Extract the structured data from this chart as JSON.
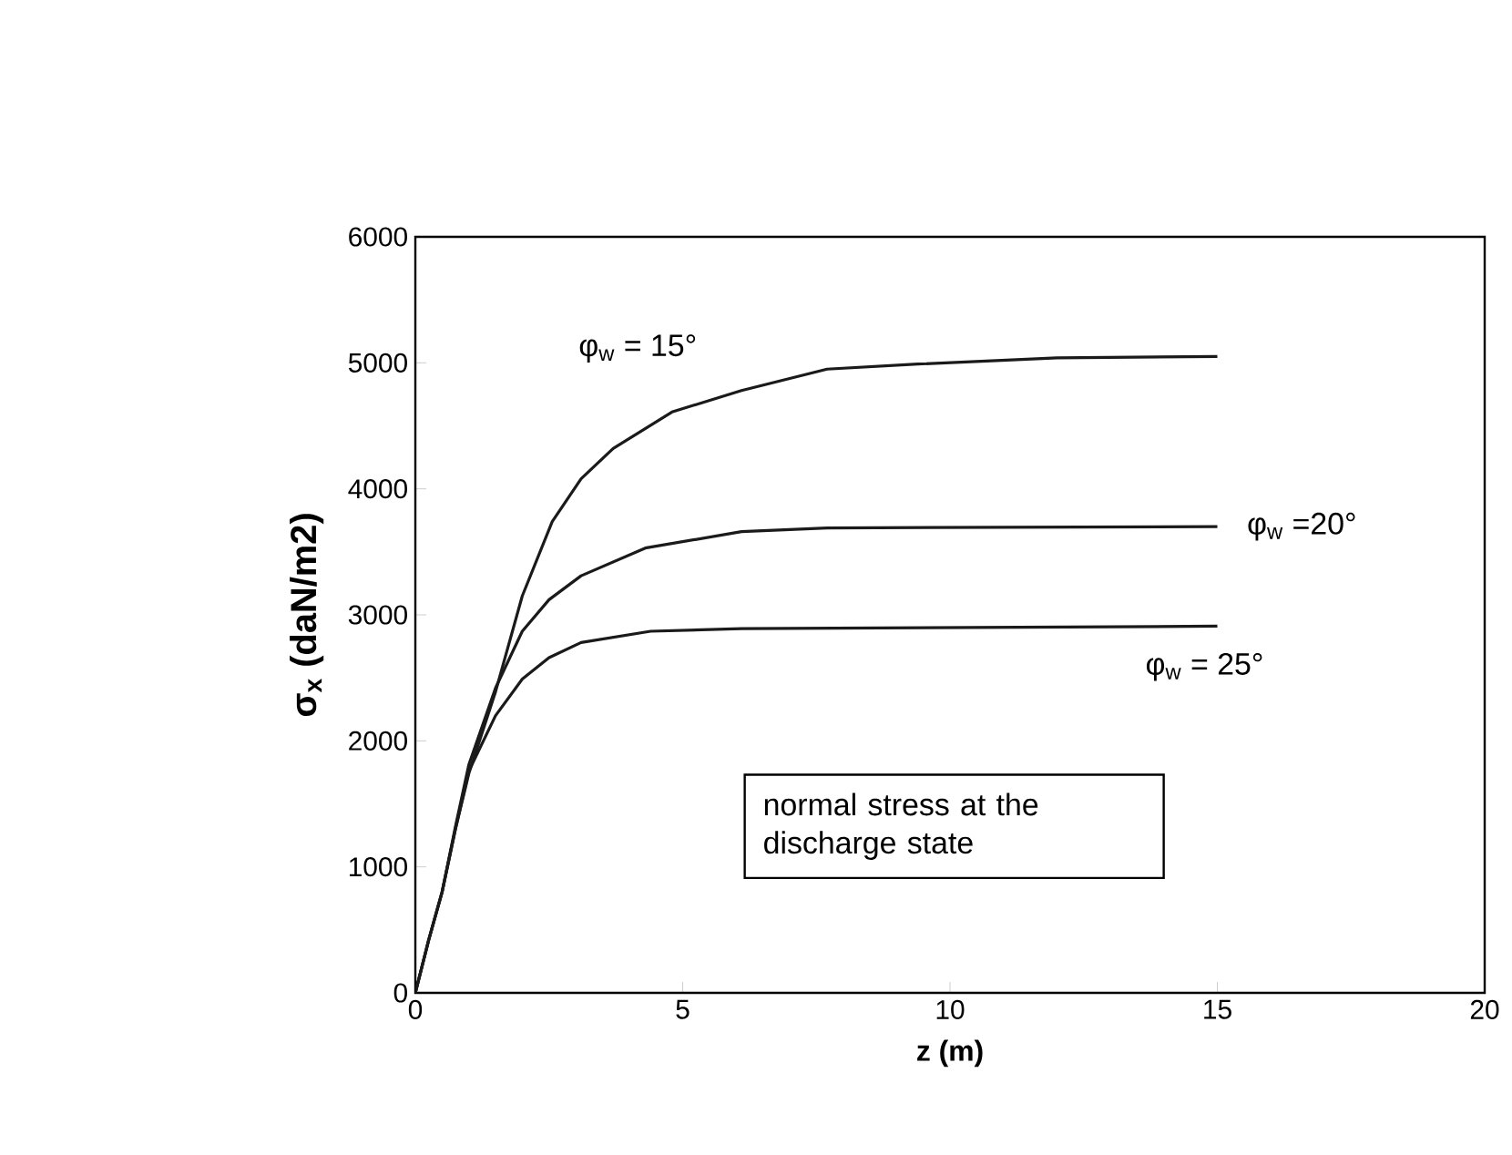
{
  "chart_data": {
    "type": "line",
    "xlabel": "z (m)",
    "ylabel": "σ$_{x}$ (daN/m2)",
    "xlim": [
      0,
      20
    ],
    "ylim": [
      0,
      6000
    ],
    "xticks": [
      0,
      5,
      10,
      15,
      20
    ],
    "yticks": [
      0,
      1000,
      2000,
      3000,
      4000,
      5000,
      6000
    ],
    "grid": false,
    "marker": "none",
    "line_style": "solid",
    "series": [
      {
        "color": "#1a1a1a",
        "x": [
          0,
          0.25,
          0.5,
          0.75,
          1,
          1.5,
          2,
          2.56,
          3.1,
          3.7,
          4.8,
          6.1,
          7.7,
          9.4,
          12,
          15
        ],
        "values": [
          0,
          420,
          800,
          1300,
          1740,
          2390,
          3150,
          3740,
          4080,
          4320,
          4610,
          4780,
          4950,
          4990,
          5040,
          5050
        ]
      },
      {
        "color": "#1a1a1a",
        "x": [
          0,
          0.25,
          0.5,
          0.75,
          1,
          1.5,
          2,
          2.5,
          3.1,
          4.3,
          6.1,
          7.7,
          15
        ],
        "values": [
          0,
          420,
          800,
          1320,
          1810,
          2420,
          2870,
          3120,
          3310,
          3530,
          3660,
          3690,
          3700
        ]
      },
      {
        "color": "#1a1a1a",
        "x": [
          0,
          0.25,
          0.5,
          0.75,
          1,
          1.5,
          2,
          2.5,
          3.1,
          4.4,
          6.1,
          15
        ],
        "values": [
          0,
          420,
          800,
          1300,
          1760,
          2200,
          2490,
          2660,
          2780,
          2870,
          2890,
          2910
        ]
      }
    ],
    "annotations": [
      "φ$_{w}$ = 15°",
      "φ$_{w}$ =20°",
      "φ$_{w}$ = 25°",
      "normal stress at the discharge state"
    ]
  }
}
